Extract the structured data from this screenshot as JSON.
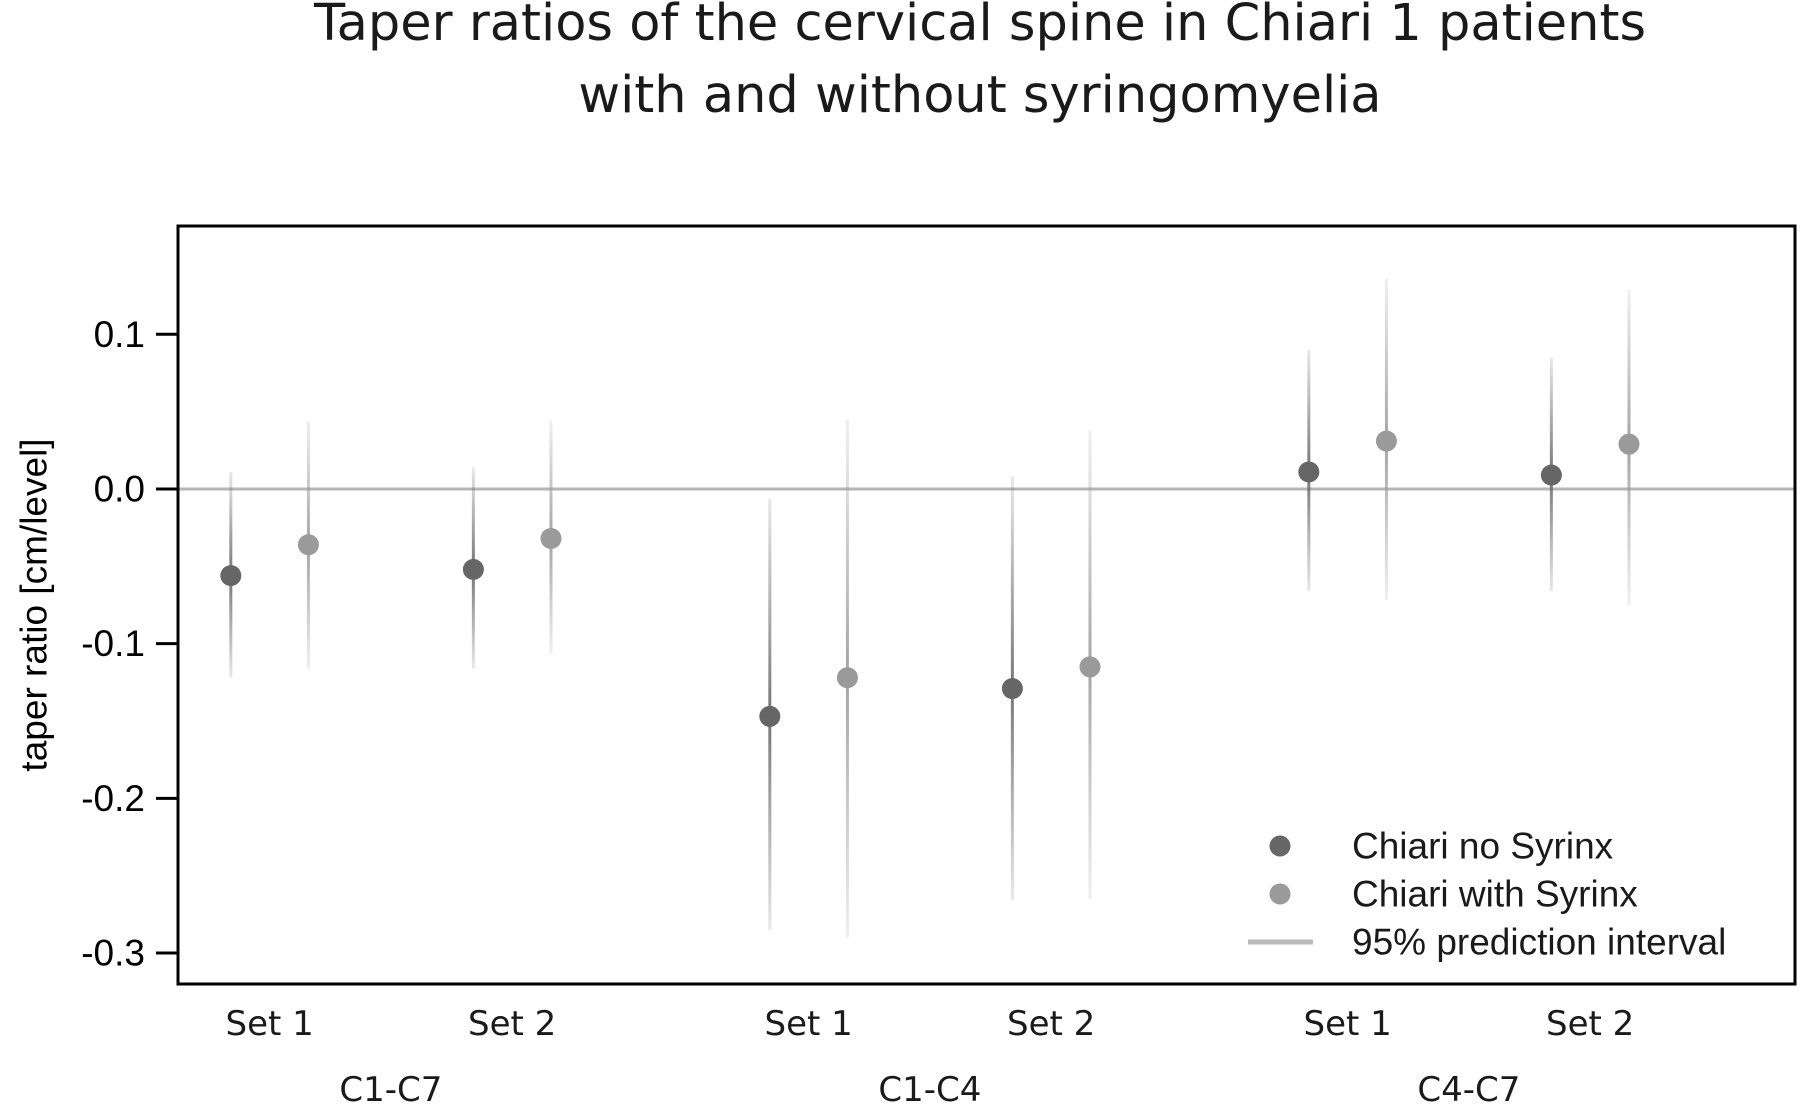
{
  "chart_data": {
    "type": "scatter",
    "title": [
      "Taper ratios of the cervical spine in Chiari 1 patients",
      "with and without syringomyelia"
    ],
    "ylabel": "taper ratio [cm/level]",
    "ylim": [
      -0.32,
      0.17
    ],
    "yticks": [
      0.1,
      0.0,
      -0.1,
      -0.2,
      -0.3
    ],
    "ytick_labels": [
      "0.1",
      "0.0",
      "-0.1",
      "-0.2",
      "-0.3"
    ],
    "reference_line_y": 0.0,
    "grid": false,
    "groups": [
      {
        "label": "C1-C7",
        "sets": [
          "Set 1",
          "Set 2"
        ]
      },
      {
        "label": "C1-C4",
        "sets": [
          "Set 1",
          "Set 2"
        ]
      },
      {
        "label": "C4-C7",
        "sets": [
          "Set 1",
          "Set 2"
        ]
      }
    ],
    "series": [
      {
        "name": "Chiari no Syrinx",
        "color": "#666666",
        "values": [
          -0.056,
          -0.052,
          -0.147,
          -0.129,
          0.011,
          0.009
        ],
        "interval_low": [
          -0.122,
          -0.116,
          -0.285,
          -0.266,
          -0.066,
          -0.066
        ],
        "interval_high": [
          0.011,
          0.014,
          -0.006,
          0.008,
          0.09,
          0.085
        ]
      },
      {
        "name": "Chiari with Syrinx",
        "color": "#9a9a9a",
        "values": [
          -0.036,
          -0.032,
          -0.122,
          -0.115,
          0.031,
          0.029
        ],
        "interval_low": [
          -0.116,
          -0.107,
          -0.29,
          -0.265,
          -0.072,
          -0.075
        ],
        "interval_high": [
          0.044,
          0.044,
          0.045,
          0.038,
          0.136,
          0.129
        ]
      }
    ],
    "legend": {
      "position": "bottom-right",
      "items": [
        {
          "label": "Chiari no Syrinx",
          "kind": "point",
          "color": "#666666"
        },
        {
          "label": "Chiari with Syrinx",
          "kind": "point",
          "color": "#9a9a9a"
        },
        {
          "label": "95% prediction interval",
          "kind": "line",
          "color": "#bbbbbb"
        }
      ]
    }
  }
}
